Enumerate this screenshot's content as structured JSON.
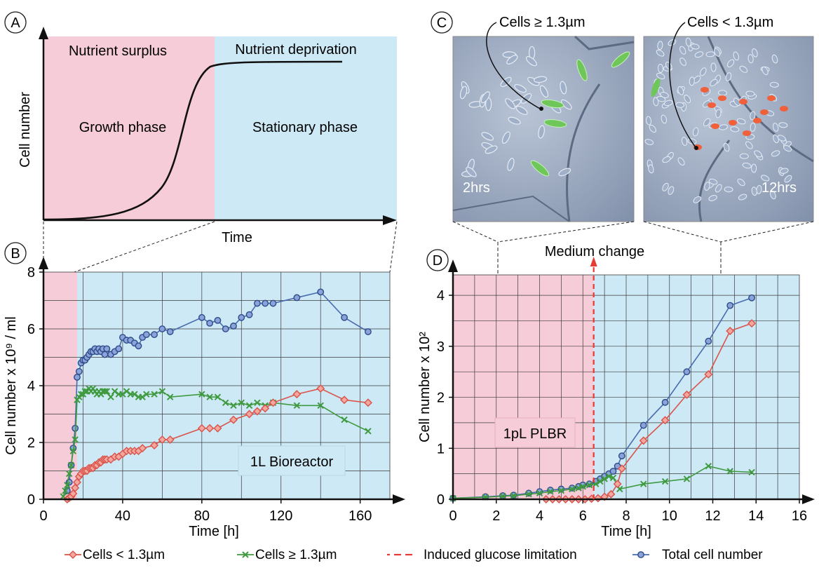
{
  "panel_labels": {
    "A": "A",
    "B": "B",
    "C": "C",
    "D": "D"
  },
  "panel_a": {
    "surplus_label": "Nutrient surplus",
    "deprivation_label": "Nutrient deprivation",
    "growth_label": "Growth phase",
    "stationary_label": "Stationary phase",
    "ylabel": "Cell number",
    "xlabel": "Time"
  },
  "panel_c": {
    "left_callout": "Cells ≥ 1.3µm",
    "right_callout": "Cells < 1.3µm",
    "left_time": "2hrs",
    "right_time": "12hrs"
  },
  "annotations": {
    "medium_change": "Medium change",
    "bioreactor_box": "1L Bioreactor",
    "plbr_box": "1pL PLBR"
  },
  "legend": [
    {
      "key": "small",
      "label": "Cells  < 1.3µm",
      "color": "#d9534a",
      "marker": "diamond"
    },
    {
      "key": "large",
      "label": "Cells  ≥ 1.3µm",
      "color": "#3f9a3f",
      "marker": "cross"
    },
    {
      "key": "glucose",
      "label": "Induced glucose limitation",
      "color": "#e63a32",
      "marker": "dashdot"
    },
    {
      "key": "total",
      "label": "Total cell number",
      "color": "#4a6ab0",
      "marker": "circle"
    }
  ],
  "colors": {
    "pink": "#f7ccd9",
    "blue": "#cce9f5",
    "small": "#d9534a",
    "large": "#3f9a3f",
    "total": "#4a6ab0",
    "glucose": "#e63a32"
  },
  "chart_data": [
    {
      "panel": "B",
      "type": "line",
      "xlabel": "Time [h]",
      "ylabel": "Cell number x 10⁹ / ml",
      "xlim": [
        0,
        175
      ],
      "ylim": [
        0,
        8
      ],
      "xticks": [
        0,
        40,
        80,
        120,
        160
      ],
      "yticks": [
        0,
        2,
        4,
        6,
        8
      ],
      "growth_phase_end": 17,
      "series": [
        {
          "name": "Total cell number",
          "key": "total",
          "x": [
            12,
            13,
            14,
            15,
            16,
            17,
            18,
            19,
            20,
            21,
            22,
            23,
            24,
            25,
            26,
            27,
            28,
            29,
            30,
            31,
            32,
            34,
            36,
            38,
            40,
            42,
            44,
            46,
            48,
            50,
            52,
            56,
            60,
            64,
            80,
            84,
            88,
            92,
            96,
            100,
            104,
            108,
            112,
            116,
            128,
            140,
            152,
            164
          ],
          "y": [
            0.3,
            0.6,
            1.2,
            1.8,
            2.5,
            4.3,
            4.5,
            4.8,
            4.9,
            4.9,
            5.0,
            5.1,
            5.2,
            5.2,
            5.3,
            5.2,
            5.3,
            5.2,
            5.3,
            5.1,
            5.3,
            5.1,
            5.2,
            5.3,
            5.7,
            5.6,
            5.6,
            5.5,
            5.4,
            5.7,
            5.8,
            5.8,
            6.0,
            5.9,
            6.4,
            6.2,
            6.3,
            6.0,
            6.1,
            6.4,
            6.5,
            6.9,
            6.9,
            6.9,
            7.1,
            7.3,
            6.4,
            5.9
          ]
        },
        {
          "name": "Cells ≥ 1.3µm",
          "key": "large",
          "x": [
            10,
            11,
            12,
            13,
            14,
            15,
            16,
            17,
            18,
            19,
            20,
            21,
            22,
            23,
            24,
            25,
            26,
            27,
            28,
            29,
            30,
            31,
            32,
            34,
            36,
            38,
            40,
            42,
            44,
            46,
            48,
            50,
            52,
            56,
            60,
            64,
            80,
            84,
            88,
            92,
            96,
            100,
            104,
            108,
            112,
            116,
            128,
            140,
            152,
            164
          ],
          "y": [
            0.1,
            0.3,
            0.5,
            0.9,
            1.2,
            1.7,
            2.1,
            3.5,
            3.6,
            3.7,
            3.7,
            3.8,
            3.8,
            3.9,
            3.8,
            3.9,
            3.8,
            3.7,
            3.8,
            3.7,
            3.8,
            3.8,
            3.8,
            3.6,
            3.8,
            3.7,
            3.7,
            3.8,
            3.7,
            3.7,
            3.6,
            3.6,
            3.7,
            3.7,
            3.8,
            3.6,
            3.7,
            3.6,
            3.6,
            3.4,
            3.3,
            3.4,
            3.3,
            3.4,
            3.3,
            3.4,
            3.3,
            3.3,
            2.8,
            2.4
          ]
        },
        {
          "name": "Cells < 1.3µm",
          "key": "small",
          "x": [
            12,
            13,
            14,
            15,
            16,
            17,
            18,
            19,
            20,
            21,
            22,
            23,
            24,
            25,
            26,
            27,
            28,
            29,
            30,
            31,
            32,
            34,
            36,
            38,
            40,
            42,
            44,
            46,
            48,
            50,
            56,
            60,
            64,
            80,
            84,
            88,
            96,
            104,
            108,
            112,
            116,
            128,
            140,
            152,
            164
          ],
          "y": [
            0.0,
            0.05,
            0.1,
            0.2,
            0.4,
            0.6,
            0.8,
            0.9,
            1.0,
            1.0,
            1.0,
            1.1,
            1.1,
            1.1,
            1.2,
            1.2,
            1.3,
            1.3,
            1.4,
            1.4,
            1.4,
            1.4,
            1.5,
            1.5,
            1.6,
            1.7,
            1.7,
            1.7,
            1.7,
            1.8,
            1.9,
            2.1,
            2.1,
            2.5,
            2.5,
            2.5,
            2.8,
            3.0,
            3.1,
            3.2,
            3.4,
            3.7,
            3.9,
            3.5,
            3.4
          ]
        }
      ]
    },
    {
      "panel": "D",
      "type": "line",
      "xlabel": "Time [h]",
      "ylabel": "Cell number x 10²",
      "xlim": [
        0,
        16
      ],
      "ylim": [
        0,
        4.4
      ],
      "xticks": [
        0,
        2,
        4,
        6,
        8,
        10,
        12,
        14,
        16
      ],
      "yticks": [
        0,
        1,
        2,
        3,
        4
      ],
      "nutrient_surplus_end": 6.5,
      "medium_change_at": 6.5,
      "series": [
        {
          "name": "Total cell number",
          "key": "total",
          "x": [
            0,
            1.5,
            2.3,
            2.8,
            3.5,
            4.0,
            4.5,
            5.0,
            5.5,
            5.8,
            6.0,
            6.3,
            6.6,
            6.8,
            7.0,
            7.2,
            7.4,
            7.6,
            7.8,
            8.8,
            9.8,
            10.8,
            11.8,
            12.8,
            13.8
          ],
          "y": [
            0.02,
            0.05,
            0.07,
            0.08,
            0.12,
            0.15,
            0.18,
            0.2,
            0.22,
            0.25,
            0.28,
            0.3,
            0.35,
            0.4,
            0.45,
            0.5,
            0.55,
            0.65,
            0.85,
            1.45,
            1.9,
            2.5,
            3.1,
            3.8,
            3.95
          ]
        },
        {
          "name": "Cells ≥ 1.3µm",
          "key": "large",
          "x": [
            0,
            1.5,
            2.3,
            2.8,
            3.5,
            4.0,
            4.5,
            5.0,
            5.5,
            5.8,
            6.0,
            6.3,
            6.6,
            6.8,
            7.0,
            7.2,
            7.4,
            7.7,
            8.8,
            9.8,
            10.8,
            11.8,
            12.8,
            13.8
          ],
          "y": [
            0.02,
            0.04,
            0.06,
            0.07,
            0.1,
            0.12,
            0.15,
            0.17,
            0.2,
            0.22,
            0.25,
            0.28,
            0.3,
            0.35,
            0.4,
            0.45,
            0.42,
            0.2,
            0.3,
            0.35,
            0.4,
            0.65,
            0.55,
            0.53
          ]
        },
        {
          "name": "Cells < 1.3µm",
          "key": "small",
          "x": [
            4.3,
            4.6,
            4.9,
            5.2,
            5.5,
            5.8,
            6.1,
            6.4,
            6.7,
            7.0,
            7.3,
            7.6,
            7.8,
            8.8,
            9.8,
            10.8,
            11.8,
            12.8,
            13.8
          ],
          "y": [
            0.0,
            0.0,
            0.0,
            0.0,
            0.0,
            0.0,
            0.0,
            0.01,
            0.02,
            0.05,
            0.1,
            0.3,
            0.6,
            1.15,
            1.55,
            2.05,
            2.45,
            3.3,
            3.45
          ]
        }
      ]
    }
  ]
}
